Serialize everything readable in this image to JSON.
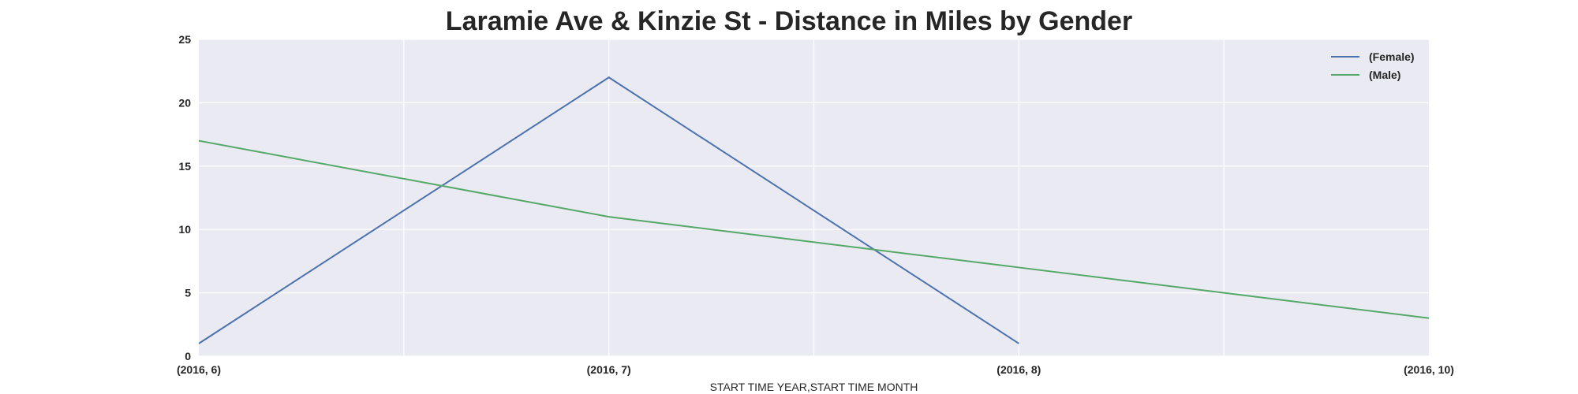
{
  "chart_data": {
    "type": "line",
    "title": "Laramie Ave & Kinzie St - Distance in Miles by Gender",
    "xlabel": "START TIME YEAR,START TIME MONTH",
    "ylabel": "",
    "categories": [
      "(2016, 6)",
      "(2016, 7)",
      "(2016, 8)",
      "(2016, 10)"
    ],
    "ylim": [
      0,
      25
    ],
    "yticks": [
      0,
      5,
      10,
      15,
      20,
      25
    ],
    "grid": true,
    "legend_position": "top-right",
    "series": [
      {
        "name": "(Female)",
        "color": "#4c72b0",
        "values": [
          1,
          22,
          1,
          null
        ]
      },
      {
        "name": "(Male)",
        "color": "#55a868",
        "values": [
          17,
          11,
          7,
          3
        ]
      }
    ]
  }
}
